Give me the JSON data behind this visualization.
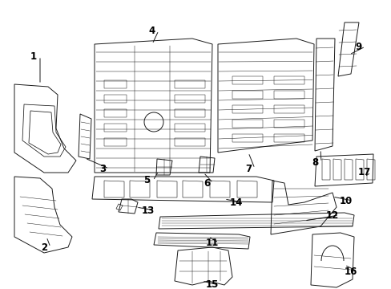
{
  "bg_color": "#ffffff",
  "line_color": "#1a1a1a",
  "text_color": "#000000",
  "font_size": 8.5,
  "line_width": 0.7,
  "fig_w": 4.89,
  "fig_h": 3.6,
  "dpi": 100
}
